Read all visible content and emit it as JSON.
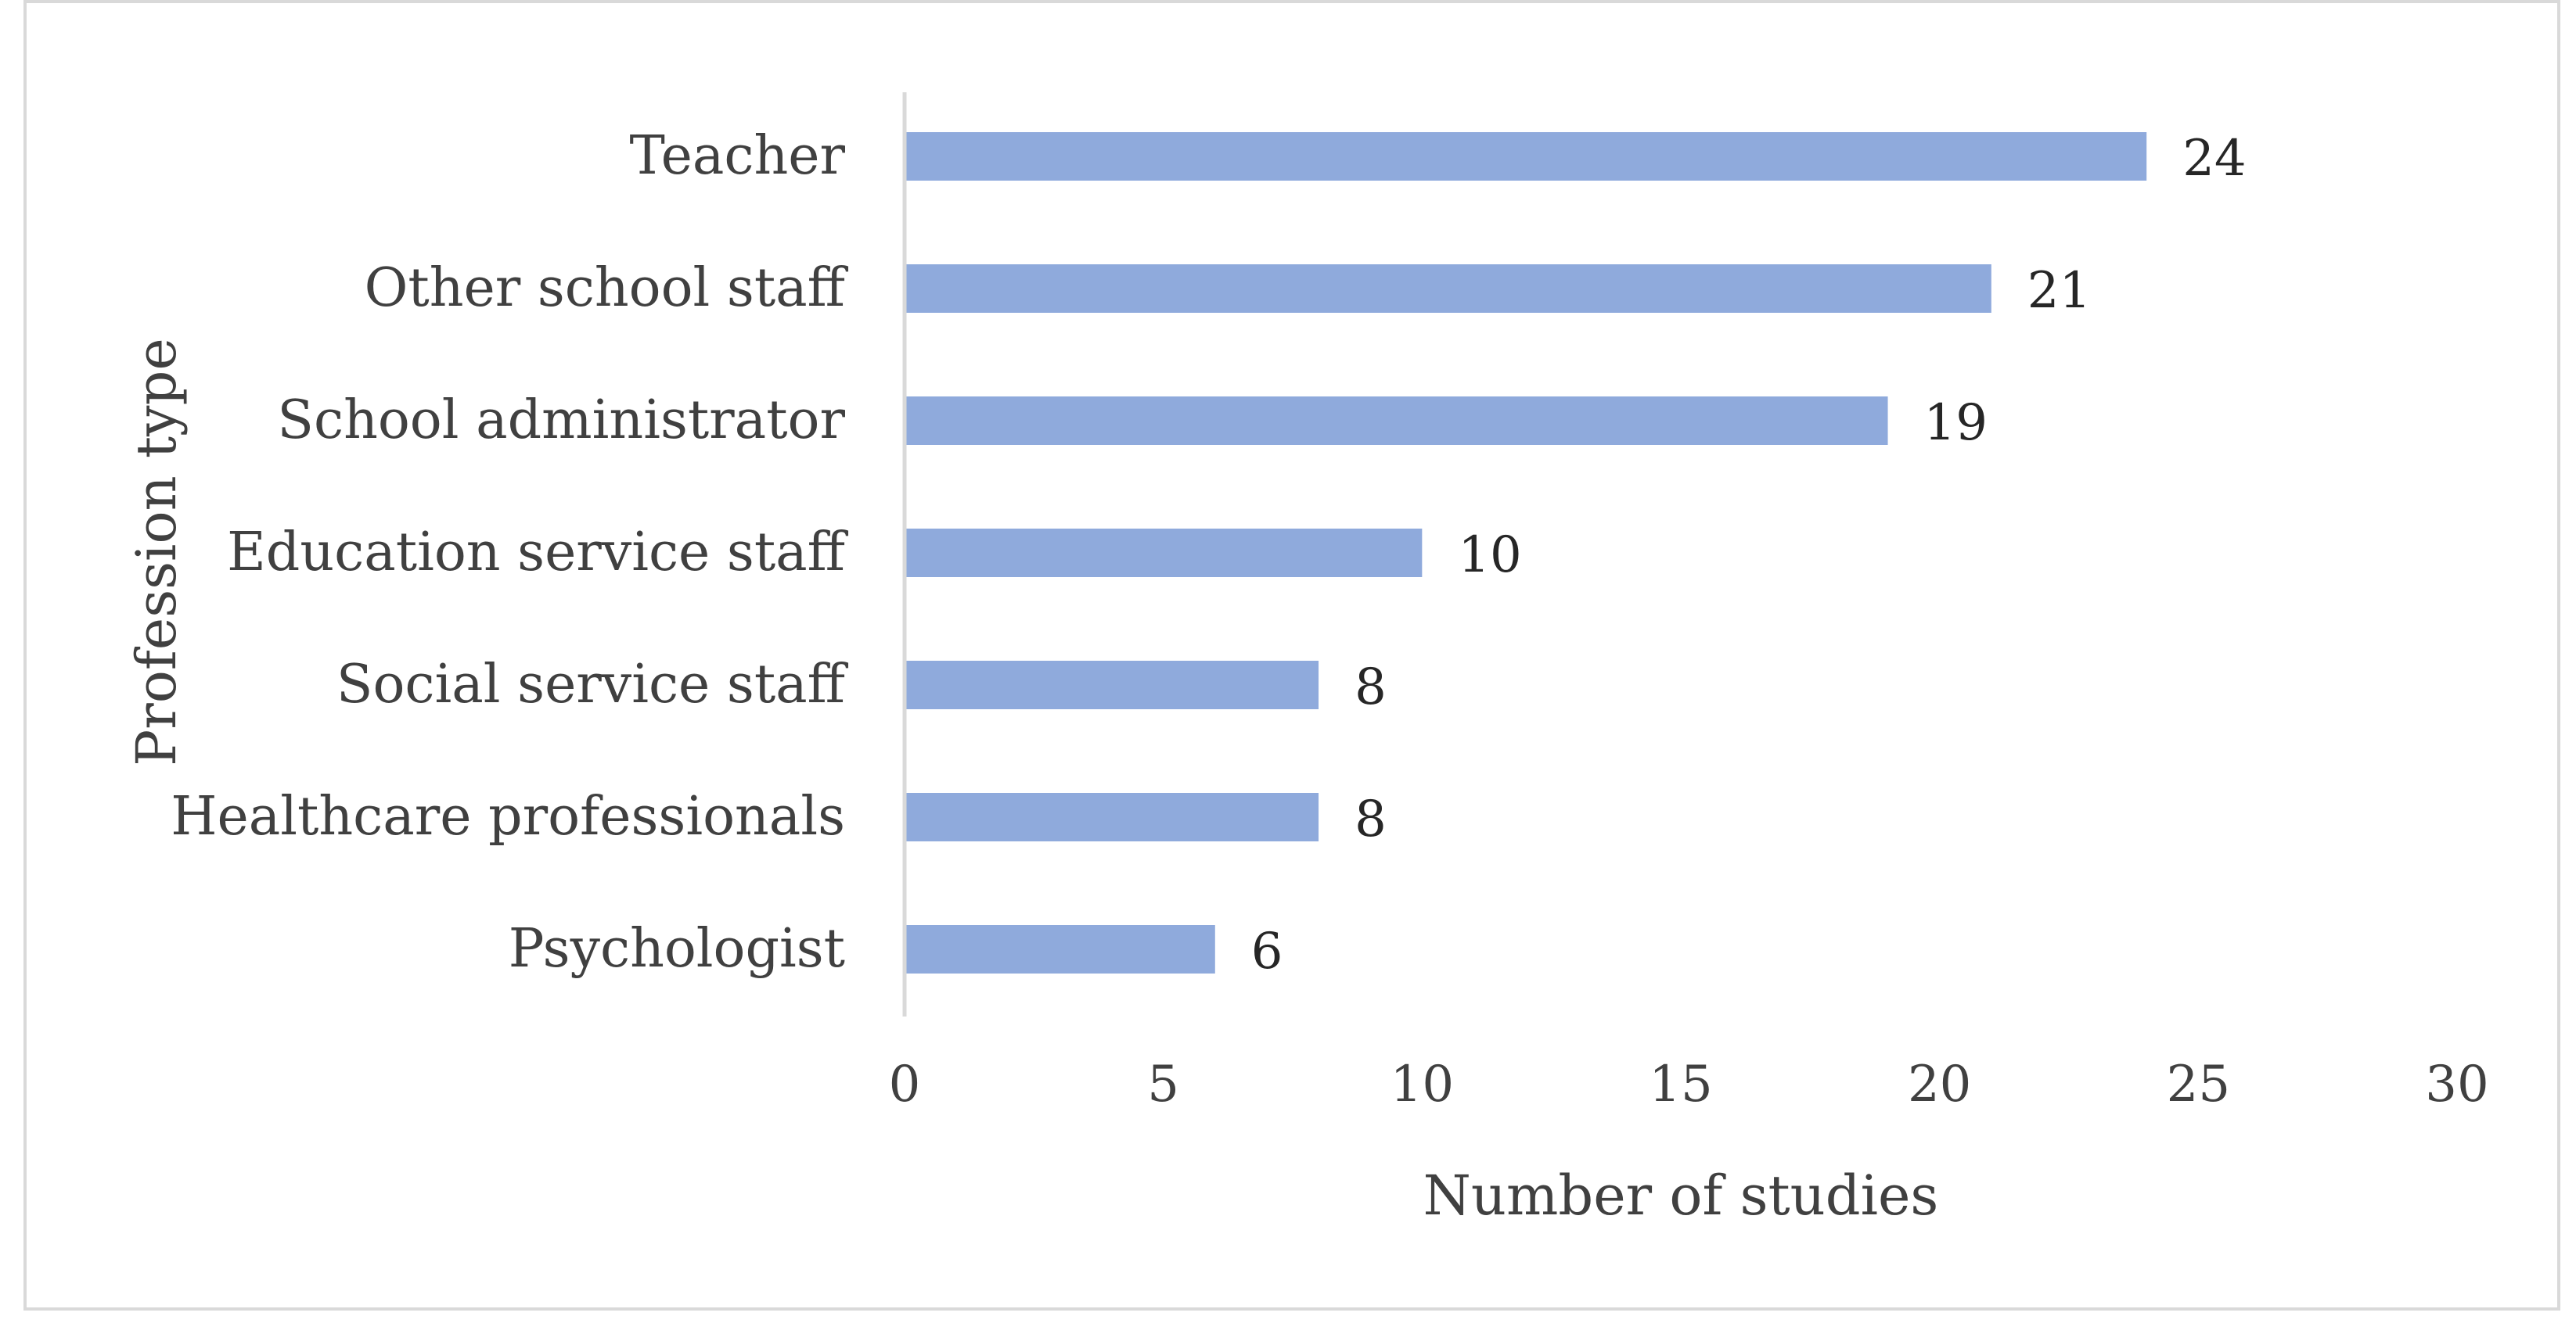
{
  "chart_data": {
    "type": "bar",
    "orientation": "horizontal",
    "title": "",
    "xlabel": "Number of studies",
    "ylabel": "Profession type",
    "categories": [
      "Teacher",
      "Other school staff",
      "School administrator",
      "Education service staff",
      "Social service staff",
      "Healthcare professionals",
      "Psychologist"
    ],
    "values": [
      24,
      21,
      19,
      10,
      8,
      8,
      6
    ],
    "xlim": [
      0,
      30
    ],
    "xticks": [
      "0",
      "5",
      "10",
      "15",
      "20",
      "25",
      "30"
    ],
    "grid": false,
    "legend": "none",
    "bar_color": "#8faadc",
    "axis_color": "#d9d9d9"
  }
}
